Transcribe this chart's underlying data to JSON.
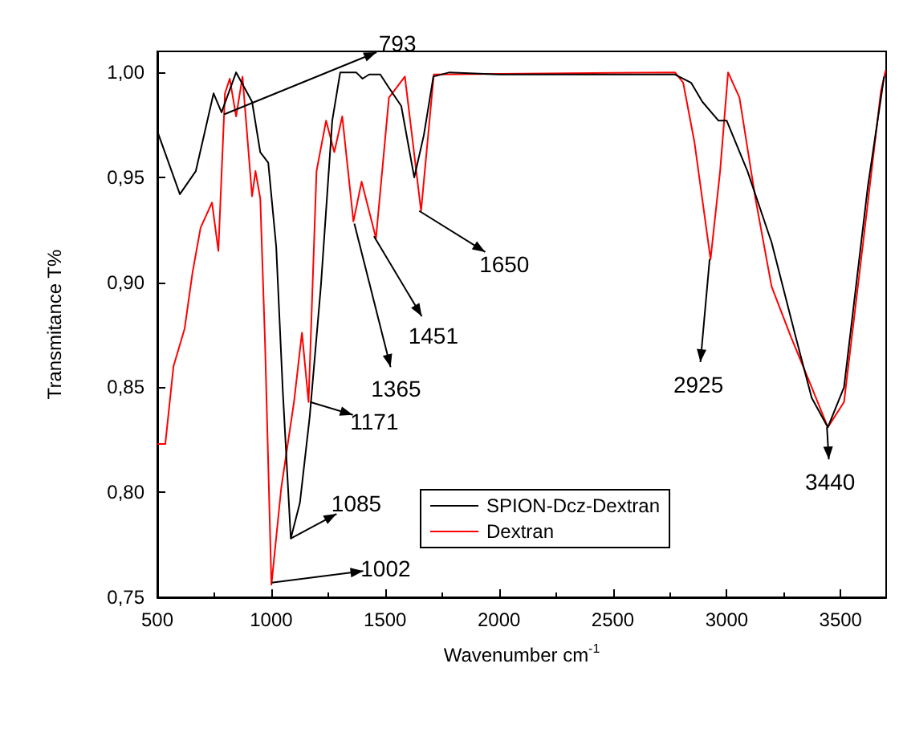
{
  "chart_data": {
    "type": "line",
    "xlabel": "Wavenumber cm$^{-1}$",
    "ylabel": "Transmitance T%",
    "xlim": [
      500,
      3700
    ],
    "xticks": [
      500,
      1000,
      1500,
      2000,
      2500,
      3000,
      3500
    ],
    "ylim": [
      0.75,
      1.01
    ],
    "yticks": [
      {
        "value": 0.75,
        "label": "0,75"
      },
      {
        "value": 0.8,
        "label": "0,80"
      },
      {
        "value": 0.85,
        "label": "0,85"
      },
      {
        "value": 0.9,
        "label": "0,90"
      },
      {
        "value": 0.95,
        "label": "0,95"
      },
      {
        "value": 1.0,
        "label": "1,00"
      }
    ],
    "grid": false,
    "legend": "bottom",
    "marker": "none",
    "line_style": "solid",
    "series": [
      {
        "name": "SPION-Dcz-Dextran",
        "color": "#000000",
        "x": [
          500,
          599,
          669,
          747,
          782,
          846,
          916,
          952,
          987,
          1022,
          1051,
          1086,
          1126,
          1169,
          1218,
          1268,
          1303,
          1373,
          1401,
          1430,
          1479,
          1515,
          1571,
          1628,
          1670,
          1712,
          1783,
          2000,
          2300,
          2600,
          2773,
          2844,
          2893,
          2964,
          3000,
          3091,
          3197,
          3303,
          3373,
          3444,
          3515,
          3620,
          3691
        ],
        "values": [
          0.972,
          0.942,
          0.953,
          0.99,
          0.981,
          1.0,
          0.986,
          0.962,
          0.957,
          0.917,
          0.848,
          0.778,
          0.795,
          0.836,
          0.898,
          0.977,
          1.0,
          1.0,
          0.997,
          0.999,
          0.999,
          0.993,
          0.984,
          0.95,
          0.97,
          0.998,
          1.0,
          0.999,
          0.999,
          0.999,
          0.999,
          0.995,
          0.986,
          0.977,
          0.977,
          0.953,
          0.919,
          0.874,
          0.845,
          0.831,
          0.85,
          0.946,
          0.998
        ]
      },
      {
        "name": "Dextran",
        "color": "#ff0000",
        "x": [
          500,
          535,
          571,
          620,
          655,
          690,
          740,
          768,
          797,
          818,
          846,
          874,
          916,
          931,
          952,
          973,
          1001,
          1044,
          1100,
          1135,
          1164,
          1199,
          1241,
          1277,
          1312,
          1361,
          1397,
          1460,
          1517,
          1587,
          1658,
          1714,
          2773,
          2809,
          2858,
          2929,
          2971,
          3006,
          3056,
          3126,
          3197,
          3282,
          3373,
          3444,
          3515,
          3599,
          3677,
          3698
        ],
        "values": [
          0.823,
          0.823,
          0.86,
          0.878,
          0.905,
          0.926,
          0.938,
          0.915,
          0.99,
          0.997,
          0.979,
          0.998,
          0.941,
          0.953,
          0.94,
          0.871,
          0.756,
          0.802,
          0.843,
          0.876,
          0.843,
          0.953,
          0.977,
          0.962,
          0.979,
          0.929,
          0.948,
          0.921,
          0.988,
          0.998,
          0.934,
          0.999,
          1.0,
          0.995,
          0.967,
          0.911,
          0.953,
          1.0,
          0.988,
          0.94,
          0.898,
          0.874,
          0.85,
          0.831,
          0.843,
          0.919,
          0.991,
          1.001
        ]
      }
    ],
    "annotations": [
      {
        "text": "793",
        "x": 793,
        "y": 0.98
      },
      {
        "text": "1002",
        "x": 1002,
        "y": 0.757
      },
      {
        "text": "1085",
        "x": 1085,
        "y": 0.778
      },
      {
        "text": "1171",
        "x": 1171,
        "y": 0.843
      },
      {
        "text": "1365",
        "x": 1365,
        "y": 0.928
      },
      {
        "text": "1451",
        "x": 1451,
        "y": 0.922
      },
      {
        "text": "1650",
        "x": 1650,
        "y": 0.934
      },
      {
        "text": "2925",
        "x": 2925,
        "y": 0.911
      },
      {
        "text": "3440",
        "x": 3440,
        "y": 0.831
      }
    ]
  }
}
